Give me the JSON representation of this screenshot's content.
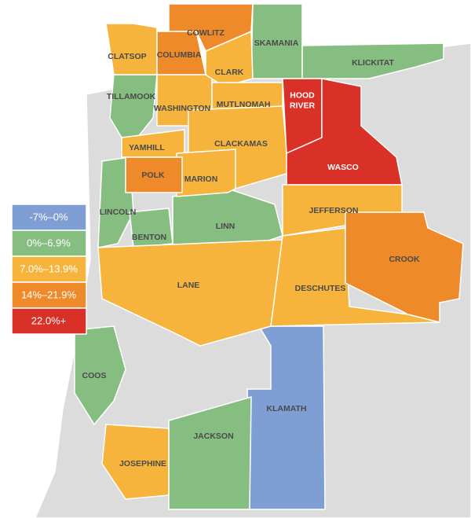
{
  "legend": [
    {
      "label": "-7%–0%",
      "color": "#7f9fd4",
      "counties": [
        "KLAMATH"
      ]
    },
    {
      "label": "0%–6.9%",
      "color": "#86bd80",
      "counties": [
        "SKAMANIA",
        "KLICKITAT",
        "TILLAMOOK",
        "LINCOLN",
        "BENTON",
        "LINN",
        "COOS",
        "JACKSON"
      ]
    },
    {
      "label": "7.0%–13.9%",
      "color": "#f6b43c",
      "counties": [
        "CLATSOP",
        "WASHINGTON",
        "CLARK",
        "MUTLNOMAH",
        "YAMHILL",
        "CLACKAMAS",
        "MARION",
        "JEFFERSON",
        "LANE",
        "DESCHUTES",
        "JOSEPHINE"
      ]
    },
    {
      "label": "14%–21.9%",
      "color": "#ef8a2a",
      "counties": [
        "COWLITZ",
        "COLUMBIA",
        "POLK",
        "CROOK"
      ]
    },
    {
      "label": "22.0%+",
      "color": "#d93127",
      "counties": [
        "HOOD RIVER",
        "WASCO"
      ]
    }
  ]
}
